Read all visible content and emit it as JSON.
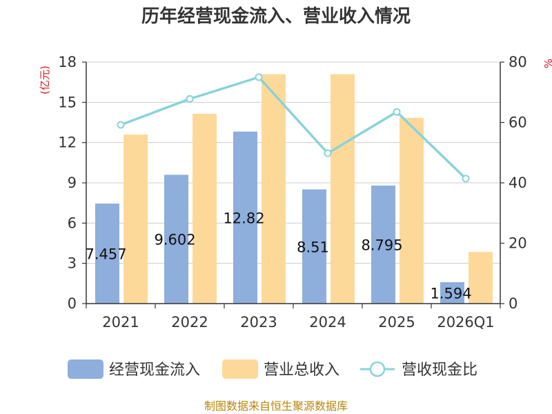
{
  "chart_data": {
    "type": "bar",
    "title": "历年经营现金流入、营业收入情况",
    "categories": [
      "2021",
      "2022",
      "2023",
      "2024",
      "2025",
      "2026Q1"
    ],
    "y_left_unit": "(亿元)",
    "y_right_unit": "%",
    "ylim_left": [
      0,
      18
    ],
    "yticks_left": [
      "0",
      "3",
      "6",
      "9",
      "12",
      "15",
      "18"
    ],
    "ylim_right": [
      0,
      80
    ],
    "yticks_right": [
      "0",
      "20",
      "40",
      "60",
      "80"
    ],
    "grid": true,
    "legend_position": "bottom",
    "series": [
      {
        "name": "经营现金流入",
        "kind": "bar",
        "axis": "left",
        "color": "#8eaedc",
        "values": [
          7.457,
          9.602,
          12.82,
          8.51,
          8.795,
          1.594
        ],
        "labels": [
          "7.457",
          "9.602",
          "12.82",
          "8.51",
          "8.795",
          "1.594"
        ]
      },
      {
        "name": "营业总收入",
        "kind": "bar",
        "axis": "left",
        "color": "#fdd999",
        "values": [
          12.6,
          14.15,
          17.1,
          17.1,
          13.85,
          3.85
        ]
      },
      {
        "name": "营收现金比",
        "kind": "line",
        "axis": "right",
        "color": "#88d3d8",
        "values": [
          59.2,
          67.8,
          75.0,
          49.8,
          63.5,
          41.4
        ]
      }
    ]
  },
  "footer": "制图数据来自恒生聚源数据库"
}
